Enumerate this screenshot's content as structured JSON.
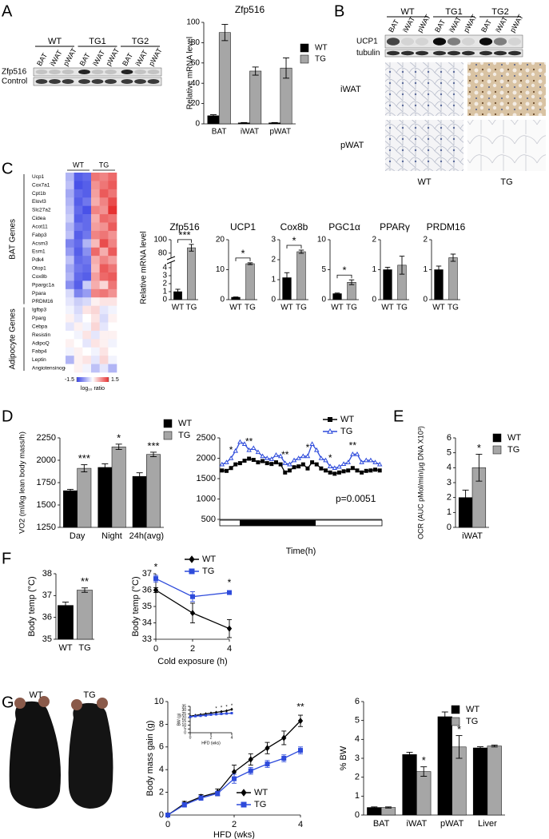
{
  "panel_labels": [
    "A",
    "B",
    "C",
    "D",
    "E",
    "F",
    "G"
  ],
  "blot_A": {
    "groups": [
      "WT",
      "TG1",
      "TG2"
    ],
    "lanes": [
      "BAT",
      "iWAT",
      "pWAT",
      "BAT",
      "iWAT",
      "pWAT",
      "BAT",
      "iWAT",
      "pWAT"
    ],
    "rows": [
      "Zfp516",
      "Control"
    ]
  },
  "blot_B": {
    "groups": [
      "WT",
      "TG1",
      "TG2"
    ],
    "lanes": [
      "BAT",
      "iWAT",
      "pWAT",
      "BAT",
      "iWAT",
      "pWAT",
      "BAT",
      "iWAT",
      "pWAT"
    ],
    "rows": [
      "UCP1",
      "tubulin"
    ],
    "histology": {
      "rows": [
        "iWAT",
        "pWAT"
      ],
      "columns": [
        "WT",
        "TG"
      ]
    }
  },
  "photo_G": {
    "labels": [
      "WT",
      "TG"
    ]
  },
  "chart_data": [
    {
      "type": "bar",
      "title": "Zfp516",
      "ylabel": "Relative mRNA level",
      "categories": [
        "BAT",
        "iWAT",
        "pWAT"
      ],
      "series": [
        {
          "name": "WT",
          "color": "#000000",
          "values": [
            8,
            1,
            1
          ],
          "errors": [
            1,
            0.3,
            0.3
          ]
        },
        {
          "name": "TG",
          "color": "#a6a6a6",
          "values": [
            90,
            52,
            55
          ],
          "errors": [
            8,
            4,
            10
          ]
        }
      ],
      "ylim": [
        0,
        100
      ],
      "yticks": [
        0,
        20,
        40,
        60,
        80,
        100
      ],
      "legend": "upper right"
    },
    {
      "type": "bar",
      "title": "Zfp516",
      "ylabel": "Relative mRNA level",
      "categories": [
        "WT",
        "TG"
      ],
      "values": [
        1,
        88
      ],
      "errors": [
        0.3,
        5
      ],
      "colors": [
        "#000000",
        "#a6a6a6"
      ],
      "ylim": [
        0,
        100
      ],
      "yticks": [
        0,
        1,
        2,
        3,
        4,
        80,
        100
      ],
      "axis_break": [
        4.5,
        75
      ],
      "significance": [
        null,
        "***"
      ],
      "significance_bracket": true
    },
    {
      "type": "bar",
      "title": "UCP1",
      "categories": [
        "WT",
        "TG"
      ],
      "values": [
        0.8,
        12
      ],
      "errors": [
        0.1,
        0.3
      ],
      "colors": [
        "#000000",
        "#a6a6a6"
      ],
      "ylim": [
        0,
        20
      ],
      "yticks": [
        0,
        10,
        20
      ],
      "significance": [
        null,
        "*"
      ],
      "significance_bracket": true
    },
    {
      "type": "bar",
      "title": "Cox8b",
      "categories": [
        "WT",
        "TG"
      ],
      "values": [
        1.1,
        2.4
      ],
      "errors": [
        0.25,
        0.08
      ],
      "colors": [
        "#000000",
        "#a6a6a6"
      ],
      "ylim": [
        0,
        3
      ],
      "yticks": [
        0,
        1,
        2,
        3
      ],
      "significance": [
        null,
        "*"
      ],
      "significance_bracket": true
    },
    {
      "type": "bar",
      "title": "PGC1α",
      "categories": [
        "WT",
        "TG"
      ],
      "values": [
        1,
        2.9
      ],
      "errors": [
        0.1,
        0.4
      ],
      "colors": [
        "#000000",
        "#a6a6a6"
      ],
      "ylim": [
        0,
        10
      ],
      "yticks": [
        0,
        5,
        10
      ],
      "significance": [
        null,
        "*"
      ],
      "significance_bracket": true
    },
    {
      "type": "bar",
      "title": "PPARγ",
      "categories": [
        "WT",
        "TG"
      ],
      "values": [
        1,
        1.15
      ],
      "errors": [
        0.08,
        0.3
      ],
      "colors": [
        "#000000",
        "#a6a6a6"
      ],
      "ylim": [
        0,
        2
      ],
      "yticks": [
        0,
        1,
        2
      ]
    },
    {
      "type": "bar",
      "title": "PRDM16",
      "categories": [
        "WT",
        "TG"
      ],
      "values": [
        1,
        1.4
      ],
      "errors": [
        0.12,
        0.12
      ],
      "colors": [
        "#000000",
        "#a6a6a6"
      ],
      "ylim": [
        0,
        2
      ],
      "yticks": [
        0,
        1,
        2
      ]
    },
    {
      "type": "heatmap",
      "column_groups": [
        "WT",
        "TG"
      ],
      "clim": [
        -1.5,
        1.5
      ],
      "cticks": [
        -1.5,
        1.5
      ],
      "colorbar_label": "log₁₀ ratio",
      "row_groups": [
        {
          "label": "BAT Genes",
          "rows": [
            "Ucp1",
            "Cox7a1",
            "Cpt1b",
            "Elovl3",
            "Slc27a2",
            "Cidea",
            "Acot11",
            "Fabp3",
            "Acsm3",
            "Esm1",
            "Pdk4",
            "Otop1",
            "Cox8b",
            "Ppargc1a",
            "Ppara",
            "PRDM16"
          ],
          "values": [
            [
              -0.6,
              -1.3,
              -1.2,
              1.0,
              0.9,
              1.1
            ],
            [
              -0.5,
              -1.4,
              -1.3,
              0.8,
              1.0,
              1.2
            ],
            [
              -0.7,
              -1.2,
              -1.3,
              0.7,
              1.2,
              1.0
            ],
            [
              -0.6,
              -1.3,
              -1.1,
              0.6,
              0.9,
              1.3
            ],
            [
              -0.5,
              -1.2,
              -1.4,
              0.9,
              0.8,
              1.5
            ],
            [
              -0.4,
              -1.3,
              -1.2,
              0.6,
              1.1,
              1.0
            ],
            [
              -0.6,
              -1.1,
              -1.2,
              0.7,
              0.8,
              1.2
            ],
            [
              -0.5,
              -1.3,
              -1.1,
              0.9,
              1.0,
              0.8
            ],
            [
              -1.0,
              -1.2,
              -0.6,
              0.5,
              1.3,
              0.9
            ],
            [
              -0.8,
              -1.3,
              -0.9,
              1.1,
              0.6,
              1.2
            ],
            [
              -0.5,
              -1.2,
              -1.1,
              0.6,
              0.9,
              0.7
            ],
            [
              -0.7,
              -1.1,
              -1.2,
              0.5,
              1.2,
              1.0
            ],
            [
              -0.6,
              -1.2,
              -1.3,
              0.7,
              1.1,
              1.2
            ],
            [
              -0.9,
              -1.3,
              -0.4,
              0.6,
              0.3,
              1.0
            ],
            [
              -0.3,
              -1.0,
              -0.8,
              0.9,
              1.0,
              0.8
            ],
            [
              -0.2,
              -0.4,
              -0.3,
              0.1,
              0.2,
              0.2
            ]
          ]
        },
        {
          "label": "Adipocyte Genes",
          "rows": [
            "Igfbp3",
            "Pparg",
            "Cebpa",
            "Resistin",
            "AdipoQ",
            "Fabp4",
            "Leptin",
            "Angiotensinogen"
          ],
          "values": [
            [
              -0.1,
              -0.3,
              0.2,
              0.3,
              -0.2,
              -0.1
            ],
            [
              0.1,
              -0.2,
              0.0,
              0.2,
              -0.3,
              0.1
            ],
            [
              -0.2,
              0.1,
              -0.1,
              0.3,
              -0.2,
              0.0
            ],
            [
              0.0,
              -0.1,
              0.2,
              -0.2,
              0.1,
              0.1
            ],
            [
              0.1,
              0.0,
              -0.2,
              0.2,
              0.1,
              -0.1
            ],
            [
              -0.1,
              0.1,
              0.0,
              -0.1,
              0.2,
              0.0
            ],
            [
              -0.6,
              0.1,
              0.2,
              -0.2,
              0.3,
              -0.1
            ],
            [
              0.0,
              0.1,
              -0.1,
              -0.5,
              -0.2,
              -0.6
            ]
          ]
        }
      ]
    },
    {
      "type": "bar",
      "ylabel": "VO2 (ml/kg lean body mass/h)",
      "categories": [
        "Day",
        "Night",
        "24h(avg)"
      ],
      "series": [
        {
          "name": "WT",
          "color": "#000000",
          "values": [
            1660,
            1920,
            1820
          ],
          "errors": [
            15,
            40,
            40
          ]
        },
        {
          "name": "TG",
          "color": "#a6a6a6",
          "values": [
            1910,
            2150,
            2065
          ],
          "errors": [
            40,
            30,
            25
          ],
          "significance": [
            "***",
            "*",
            "***"
          ]
        }
      ],
      "ylim": [
        1250,
        2250
      ],
      "yticks": [
        1250,
        1500,
        1750,
        2000,
        2250
      ],
      "legend": "upper right"
    },
    {
      "type": "line",
      "xlabel": "Time(h)",
      "annotation": "p=0.0051",
      "categories": [
        null,
        null,
        null,
        null,
        null,
        null,
        null,
        null,
        null,
        null,
        null,
        null,
        null,
        null,
        null,
        null,
        null,
        null,
        null,
        null,
        null,
        null,
        null,
        null,
        null,
        null,
        null,
        null,
        null,
        null,
        null,
        null,
        null,
        null,
        null,
        null
      ],
      "series": [
        {
          "name": "WT",
          "color": "#000000",
          "marker": "square",
          "values": [
            1700,
            1690,
            1760,
            1850,
            1880,
            1940,
            1990,
            1960,
            1900,
            1930,
            1880,
            1860,
            1900,
            1850,
            1650,
            1700,
            1780,
            1800,
            1850,
            1750,
            1900,
            1850,
            1750,
            1700,
            1650,
            1620,
            1650,
            1680,
            1700,
            1760,
            1700,
            1650,
            1690,
            1700,
            1720,
            1700
          ]
        },
        {
          "name": "TG",
          "color": "#2e4bdb",
          "marker": "triangle",
          "values": [
            1850,
            1900,
            2000,
            2180,
            2400,
            2350,
            2200,
            2250,
            2150,
            2050,
            2000,
            1980,
            2080,
            2050,
            1880,
            1850,
            1950,
            2000,
            2050,
            2050,
            2350,
            2200,
            2000,
            1950,
            1800,
            1760,
            1790,
            1860,
            1900,
            2100,
            2100,
            1900,
            1950,
            1950,
            1900,
            1850
          ],
          "significance": [
            null,
            null,
            "*",
            null,
            null,
            null,
            "**",
            null,
            null,
            null,
            null,
            null,
            null,
            null,
            "**",
            null,
            null,
            null,
            null,
            "*",
            null,
            null,
            null,
            null,
            "*",
            null,
            null,
            null,
            null,
            "**",
            null,
            null,
            null,
            null,
            null,
            null
          ]
        }
      ],
      "ylim": [
        500,
        2500
      ],
      "yticks": [
        500,
        1000,
        1500,
        2000,
        2500
      ],
      "legend": "upper right"
    },
    {
      "type": "bar",
      "ylabel": "OCR (AUC pMol/min/µg DNA X10³)",
      "categories": [
        "iWAT"
      ],
      "series": [
        {
          "name": "WT",
          "color": "#000000",
          "values": [
            2
          ],
          "errors": [
            0.5
          ]
        },
        {
          "name": "TG",
          "color": "#a6a6a6",
          "values": [
            4
          ],
          "errors": [
            0.9
          ],
          "significance": [
            "*"
          ]
        }
      ],
      "ylim": [
        0,
        6
      ],
      "yticks": [
        0,
        1,
        2,
        3,
        4,
        5,
        6
      ],
      "legend": "upper right"
    },
    {
      "type": "bar",
      "ylabel": "Body temp (°C)",
      "categories": [
        "WT",
        "TG"
      ],
      "values": [
        36.55,
        37.25
      ],
      "errors": [
        0.15,
        0.1
      ],
      "colors": [
        "#000000",
        "#a6a6a6"
      ],
      "ylim": [
        35,
        38
      ],
      "yticks": [
        35,
        36,
        37,
        38
      ],
      "significance": [
        null,
        "**"
      ]
    },
    {
      "type": "line",
      "xlabel": "Cold exposure (h)",
      "ylabel": "Body temp (°C)",
      "x": [
        0,
        2,
        4
      ],
      "series": [
        {
          "name": "WT",
          "color": "#000000",
          "marker": "diamond",
          "values": [
            36,
            34.6,
            33.65
          ],
          "errors": [
            0.15,
            0.6,
            0.55
          ]
        },
        {
          "name": "TG",
          "color": "#2e4bdb",
          "marker": "square",
          "values": [
            36.7,
            35.6,
            35.85
          ],
          "errors": [
            0.2,
            0.3,
            0.1
          ],
          "significance": [
            "*",
            null,
            "*"
          ]
        }
      ],
      "xlim": [
        0,
        4
      ],
      "xticks": [
        0,
        2,
        4
      ],
      "ylim": [
        33,
        37
      ],
      "yticks": [
        33,
        34,
        35,
        36,
        37
      ],
      "legend": "upper right"
    },
    {
      "type": "line",
      "xlabel": "HFD (wks)",
      "ylabel": "Body mass gain (g)",
      "x": [
        0,
        0.5,
        1,
        1.5,
        2,
        2.5,
        3,
        3.5,
        4
      ],
      "series": [
        {
          "name": "WT",
          "color": "#000000",
          "marker": "diamond",
          "values": [
            0,
            1,
            1.6,
            2,
            3.8,
            4.9,
            5.9,
            6.8,
            8.3
          ],
          "errors": [
            0,
            0.2,
            0.2,
            0.3,
            0.6,
            0.5,
            0.5,
            0.6,
            0.5
          ],
          "significance": [
            null,
            null,
            null,
            null,
            null,
            null,
            null,
            null,
            "**"
          ]
        },
        {
          "name": "TG",
          "color": "#2e4bdb",
          "marker": "square",
          "values": [
            0,
            0.9,
            1.5,
            1.9,
            3.2,
            3.9,
            4.5,
            5,
            5.7
          ],
          "errors": [
            0,
            0.2,
            0.2,
            0.2,
            0.4,
            0.3,
            0.3,
            0.3,
            0.3
          ]
        }
      ],
      "xlim": [
        0,
        4
      ],
      "xticks": [
        0,
        2,
        4
      ],
      "ylim": [
        0,
        10
      ],
      "yticks": [
        0,
        2,
        4,
        6,
        8,
        10
      ],
      "legend": "lower right"
    },
    {
      "type": "line",
      "xlabel": "HFD (wks)",
      "ylabel": "BW (g)",
      "x": [
        0,
        0.5,
        1,
        1.5,
        2,
        2.5,
        3,
        3.5,
        4
      ],
      "series": [
        {
          "name": "WT",
          "color": "#000000",
          "marker": "diamond",
          "values": [
            22,
            23,
            24,
            25,
            26,
            27,
            28,
            29,
            31
          ],
          "significance": [
            null,
            null,
            null,
            null,
            null,
            "*",
            "*",
            "*",
            "*"
          ]
        },
        {
          "name": "TG",
          "color": "#2e4bdb",
          "marker": "square",
          "values": [
            21,
            22,
            22.5,
            23,
            24,
            24.5,
            25,
            25.5,
            26
          ]
        }
      ],
      "xlim": [
        0,
        4
      ],
      "xticks": [
        0,
        2,
        4
      ],
      "ylim": [
        0,
        35
      ],
      "yticks": [
        0,
        5,
        10,
        15,
        20,
        25,
        30,
        35
      ]
    },
    {
      "type": "bar",
      "ylabel": "% BW",
      "categories": [
        "BAT",
        "iWAT",
        "pWAT",
        "Liver"
      ],
      "series": [
        {
          "name": "WT",
          "color": "#000000",
          "values": [
            0.4,
            3.2,
            5.2,
            3.55
          ],
          "errors": [
            0.03,
            0.12,
            0.25,
            0.06
          ]
        },
        {
          "name": "TG",
          "color": "#a6a6a6",
          "values": [
            0.4,
            2.3,
            3.6,
            3.65
          ],
          "errors": [
            0.03,
            0.25,
            0.6,
            0.05
          ],
          "significance": [
            null,
            "*",
            "*",
            null
          ]
        }
      ],
      "ylim": [
        0,
        6
      ],
      "yticks": [
        0,
        1,
        2,
        3,
        4,
        5,
        6
      ],
      "legend": "upper right"
    }
  ]
}
